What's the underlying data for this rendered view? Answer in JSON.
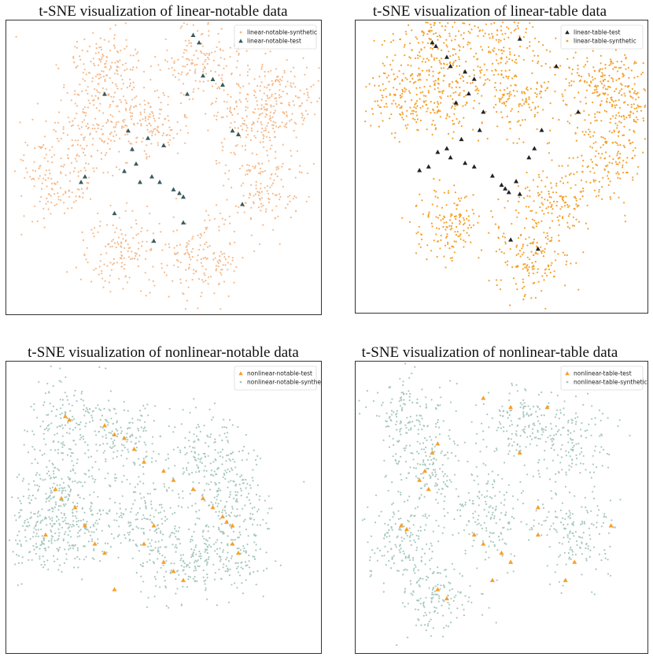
{
  "chart_data": [
    {
      "type": "scatter",
      "title": "t-SNE visualization of linear-notable data",
      "xlabel": "",
      "ylabel": "",
      "grid": false,
      "legend_position": "top-right",
      "series": [
        {
          "name": "linear-notable-synthetic",
          "marker": "dot",
          "color": "#f5b98a",
          "clusters": [
            [
              -30,
              55
            ],
            [
              20,
              60
            ],
            [
              -10,
              25
            ],
            [
              45,
              25
            ],
            [
              -55,
              -5
            ],
            [
              50,
              -10
            ],
            [
              20,
              -50
            ],
            [
              -20,
              -45
            ],
            [
              -35,
              25
            ],
            [
              60,
              40
            ]
          ]
        },
        {
          "name": "linear-notable-test",
          "marker": "triangle",
          "color": "#3a5a5c",
          "points": [
            [
              -18,
              20
            ],
            [
              -16,
              10
            ],
            [
              -14,
              2
            ],
            [
              -20,
              -2
            ],
            [
              -12,
              -8
            ],
            [
              5,
              -12
            ],
            [
              8,
              -14
            ],
            [
              10,
              -16
            ],
            [
              -6,
              -5
            ],
            [
              -2,
              -8
            ],
            [
              0,
              12
            ],
            [
              -8,
              16
            ],
            [
              20,
              50
            ],
            [
              25,
              48
            ],
            [
              30,
              45
            ],
            [
              15,
              72
            ],
            [
              18,
              68
            ],
            [
              12,
              40
            ],
            [
              -40,
              -5
            ],
            [
              -42,
              -8
            ],
            [
              -25,
              -25
            ],
            [
              35,
              20
            ],
            [
              38,
              18
            ],
            [
              -30,
              40
            ],
            [
              -5,
              -40
            ],
            [
              40,
              -20
            ],
            [
              10,
              -30
            ]
          ]
        }
      ]
    },
    {
      "type": "scatter",
      "title": "t-SNE visualization of linear-table data",
      "xlabel": "",
      "ylabel": "",
      "grid": false,
      "legend_position": "top-right",
      "series": [
        {
          "name": "linear-table-test",
          "marker": "triangle",
          "color": "#222222",
          "points": [
            [
              -30,
              60
            ],
            [
              -28,
              55
            ],
            [
              -20,
              52
            ],
            [
              -15,
              48
            ],
            [
              -18,
              40
            ],
            [
              -25,
              35
            ],
            [
              -10,
              30
            ],
            [
              -12,
              20
            ],
            [
              -22,
              15
            ],
            [
              -30,
              10
            ],
            [
              -35,
              8
            ],
            [
              -28,
              5
            ],
            [
              -20,
              2
            ],
            [
              -15,
              0
            ],
            [
              -5,
              -5
            ],
            [
              0,
              -10
            ],
            [
              2,
              -12
            ],
            [
              4,
              -14
            ],
            [
              8,
              -8
            ],
            [
              10,
              -15
            ],
            [
              15,
              5
            ],
            [
              18,
              10
            ],
            [
              22,
              20
            ],
            [
              -40,
              0
            ],
            [
              -45,
              -2
            ],
            [
              5,
              -40
            ],
            [
              20,
              -45
            ],
            [
              30,
              55
            ],
            [
              42,
              30
            ],
            [
              10,
              70
            ],
            [
              -38,
              68
            ],
            [
              -36,
              66
            ]
          ]
        },
        {
          "name": "linear-table-synthetic",
          "marker": "dot",
          "color": "#f5a02a",
          "clusters": [
            [
              -30,
              40
            ],
            [
              10,
              40
            ],
            [
              50,
              45
            ],
            [
              60,
              5
            ],
            [
              30,
              -20
            ],
            [
              -30,
              -30
            ],
            [
              -55,
              40
            ],
            [
              15,
              -50
            ],
            [
              0,
              72
            ],
            [
              -35,
              70
            ],
            [
              70,
              40
            ]
          ]
        }
      ]
    },
    {
      "type": "scatter",
      "title": "t-SNE visualization of nonlinear-notable data",
      "xlabel": "",
      "ylabel": "",
      "grid": false,
      "legend_position": "top-right",
      "series": [
        {
          "name": "nonlinear-notable-test",
          "marker": "triangle",
          "color": "#f5a02a",
          "points": [
            [
              -50,
              50
            ],
            [
              -48,
              48
            ],
            [
              -30,
              45
            ],
            [
              -25,
              40
            ],
            [
              -20,
              38
            ],
            [
              -15,
              32
            ],
            [
              -10,
              25
            ],
            [
              0,
              20
            ],
            [
              5,
              15
            ],
            [
              15,
              10
            ],
            [
              20,
              5
            ],
            [
              25,
              0
            ],
            [
              30,
              -5
            ],
            [
              32,
              -8
            ],
            [
              35,
              -10
            ],
            [
              -55,
              10
            ],
            [
              -52,
              5
            ],
            [
              -45,
              0
            ],
            [
              -40,
              -10
            ],
            [
              -35,
              -20
            ],
            [
              -30,
              -25
            ],
            [
              -60,
              -15
            ],
            [
              -10,
              -20
            ],
            [
              0,
              -30
            ],
            [
              5,
              -35
            ],
            [
              35,
              -20
            ],
            [
              38,
              -25
            ],
            [
              -25,
              -45
            ],
            [
              10,
              -40
            ],
            [
              -5,
              -10
            ]
          ]
        },
        {
          "name": "nonlinear-notable-synthetic",
          "marker": "dot",
          "color": "#a8c8be",
          "clusters": [
            [
              -20,
              35
            ],
            [
              20,
              30
            ],
            [
              -55,
              15
            ],
            [
              -45,
              -10
            ],
            [
              -10,
              -10
            ],
            [
              35,
              5
            ],
            [
              10,
              -30
            ],
            [
              -60,
              -15
            ],
            [
              35,
              -25
            ],
            [
              -48,
              48
            ]
          ]
        }
      ]
    },
    {
      "type": "scatter",
      "title": "t-SNE visualization of nonlinear-table data",
      "xlabel": "",
      "ylabel": "",
      "grid": false,
      "legend_position": "top-right",
      "series": [
        {
          "name": "nonlinear-table-test",
          "marker": "triangle",
          "color": "#f5a02a",
          "points": [
            [
              -10,
              60
            ],
            [
              5,
              55
            ],
            [
              25,
              55
            ],
            [
              -35,
              35
            ],
            [
              -38,
              30
            ],
            [
              -42,
              20
            ],
            [
              -45,
              15
            ],
            [
              -40,
              10
            ],
            [
              10,
              30
            ],
            [
              20,
              0
            ],
            [
              -15,
              -15
            ],
            [
              -10,
              -20
            ],
            [
              0,
              -25
            ],
            [
              5,
              -30
            ],
            [
              20,
              -15
            ],
            [
              -55,
              -10
            ],
            [
              -52,
              -12
            ],
            [
              -35,
              -45
            ],
            [
              -30,
              -50
            ],
            [
              40,
              -30
            ],
            [
              35,
              -40
            ],
            [
              60,
              -10
            ],
            [
              -5,
              -40
            ]
          ]
        },
        {
          "name": "nonlinear-table-synthetic",
          "marker": "dot",
          "color": "#a8c8be",
          "clusters": [
            [
              10,
              45
            ],
            [
              -5,
              -5
            ],
            [
              40,
              -15
            ],
            [
              -42,
              20
            ],
            [
              -55,
              -20
            ],
            [
              -52,
              52
            ],
            [
              -35,
              -48
            ],
            [
              40,
              35
            ]
          ]
        }
      ]
    }
  ]
}
